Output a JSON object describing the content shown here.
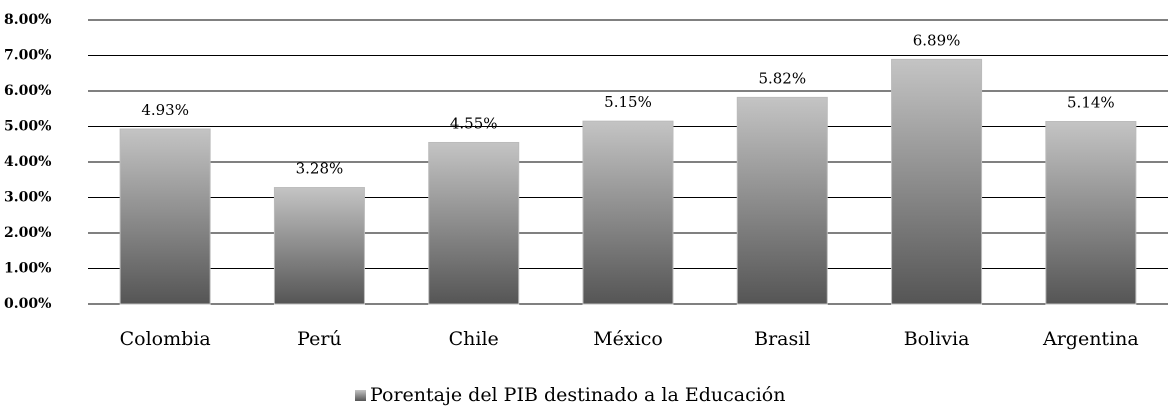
{
  "chart_data": {
    "type": "bar",
    "categories": [
      "Colombia",
      "Perú",
      "Chile",
      "México",
      "Brasil",
      "Bolivia",
      "Argentina"
    ],
    "series": [
      {
        "name": "Porentaje del PIB destinado a la Educación",
        "color": "#555555",
        "values": [
          4.93,
          3.28,
          4.55,
          5.15,
          5.82,
          6.89,
          5.14
        ],
        "value_labels": [
          "4.93%",
          "3.28%",
          "4.55%",
          "5.15%",
          "5.82%",
          "6.89%",
          "5.14%"
        ]
      }
    ],
    "ylim": [
      0,
      8
    ],
    "yticks": [
      {
        "value": 0,
        "label": "0.00%"
      },
      {
        "value": 1,
        "label": "1.00%"
      },
      {
        "value": 2,
        "label": "2.00%"
      },
      {
        "value": 3,
        "label": "3.00%"
      },
      {
        "value": 4,
        "label": "4.00%"
      },
      {
        "value": 5,
        "label": "5.00%"
      },
      {
        "value": 6,
        "label": "6.00%"
      },
      {
        "value": 7,
        "label": "7.00%"
      },
      {
        "value": 8,
        "label": "8.00%"
      }
    ],
    "grid": true,
    "legend": "bottom"
  }
}
